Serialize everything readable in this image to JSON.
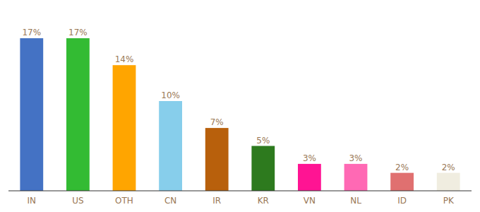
{
  "chart_data": {
    "type": "bar",
    "categories": [
      "IN",
      "US",
      "OTH",
      "CN",
      "IR",
      "KR",
      "VN",
      "NL",
      "ID",
      "PK"
    ],
    "values": [
      17,
      17,
      14,
      10,
      7,
      5,
      3,
      3,
      2,
      2
    ],
    "value_labels": [
      "17%",
      "17%",
      "14%",
      "10%",
      "7%",
      "5%",
      "3%",
      "3%",
      "2%",
      "2%"
    ],
    "colors": [
      "#4472c4",
      "#33bb33",
      "#ffa500",
      "#87ceeb",
      "#b8600c",
      "#2d7a1e",
      "#ff1493",
      "#ff69b4",
      "#e07070",
      "#f0ede0"
    ],
    "ylim": [
      0,
      20
    ],
    "data_labels": true,
    "tick_labels": "x",
    "grid": false
  }
}
